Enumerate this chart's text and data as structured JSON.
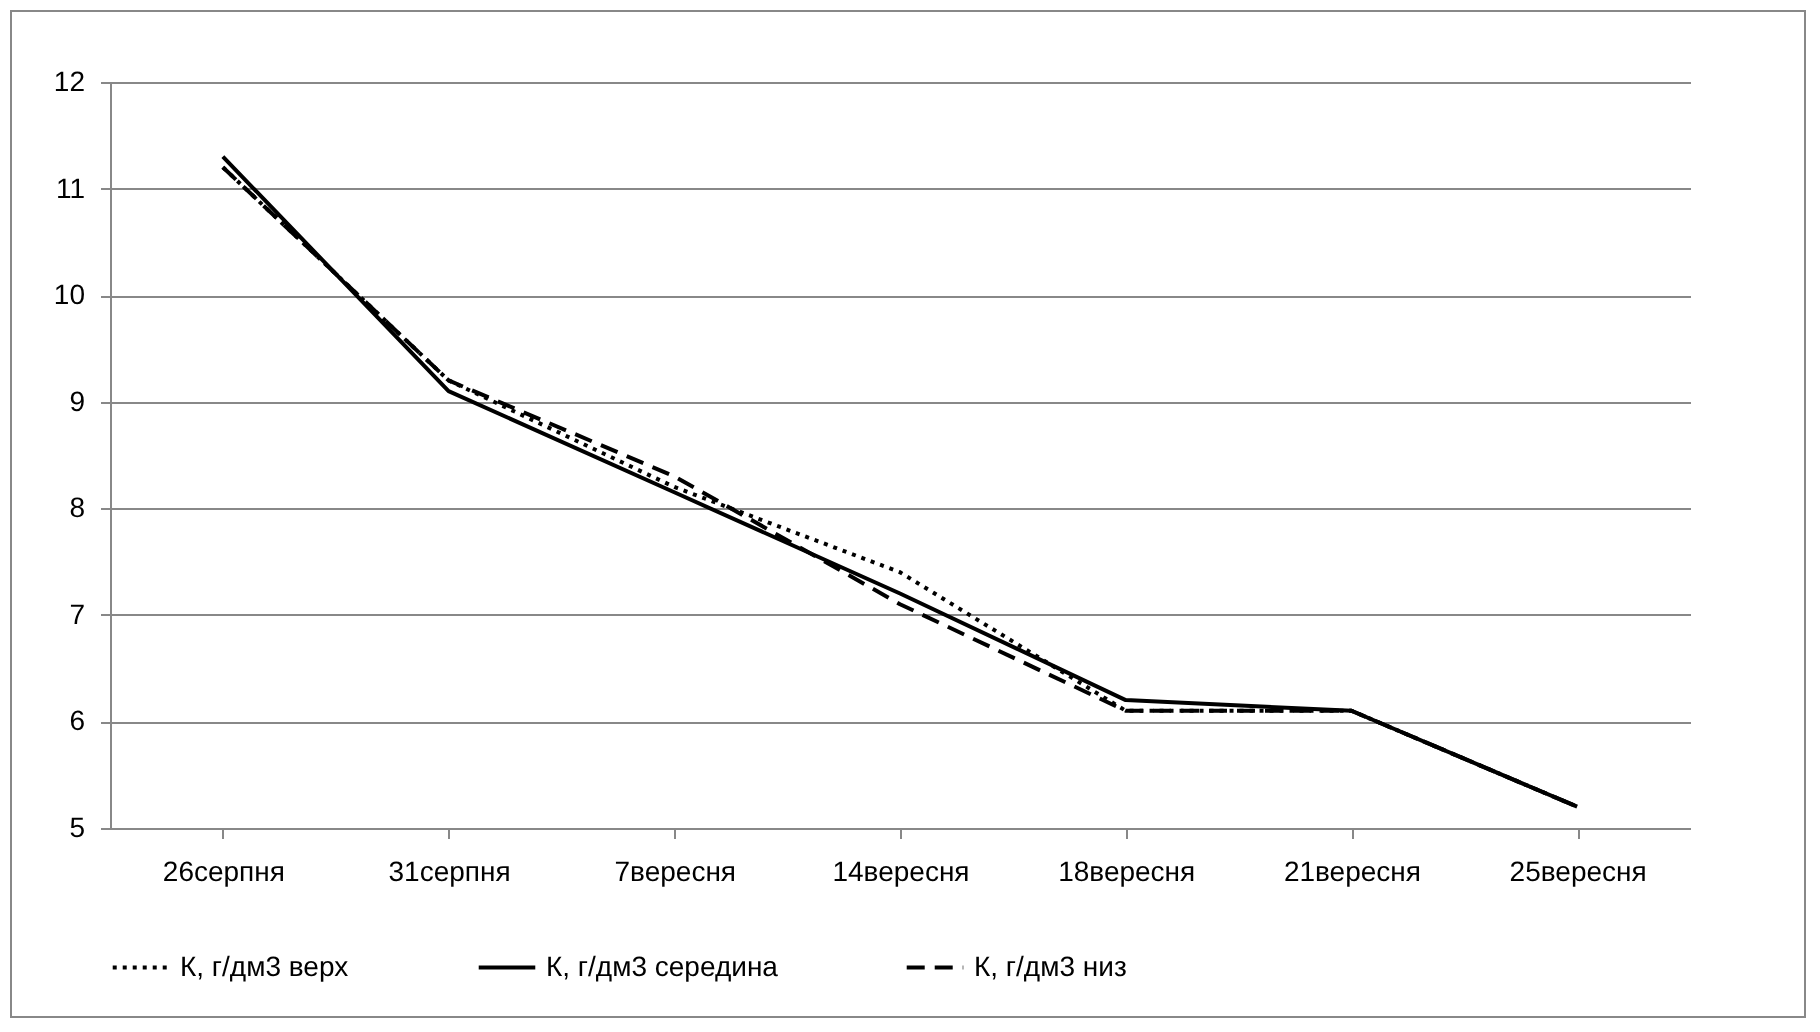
{
  "chart_data": {
    "type": "line",
    "categories": [
      "26серпня",
      "31серпня",
      "7вересня",
      "14вересня",
      "18вересня",
      "21вересня",
      "25вересня"
    ],
    "series": [
      {
        "name": "К, г/дм3 верх",
        "color": "#000000",
        "line_style": "dotted",
        "values": [
          11.2,
          9.2,
          8.2,
          7.4,
          6.1,
          6.1,
          5.2
        ]
      },
      {
        "name": "К, г/дм3 середина",
        "color": "#000000",
        "line_style": "solid",
        "values": [
          11.3,
          9.1,
          8.15,
          7.2,
          6.2,
          6.1,
          5.2
        ]
      },
      {
        "name": "К, г/дм3 низ",
        "color": "#000000",
        "line_style": "dashed",
        "values": [
          11.2,
          9.2,
          8.3,
          7.1,
          6.1,
          6.1,
          5.2
        ]
      }
    ],
    "ylim": [
      5,
      12
    ],
    "yticks": [
      5,
      6,
      7,
      8,
      9,
      10,
      11,
      12
    ],
    "grid": "y",
    "legend": "bottom"
  }
}
